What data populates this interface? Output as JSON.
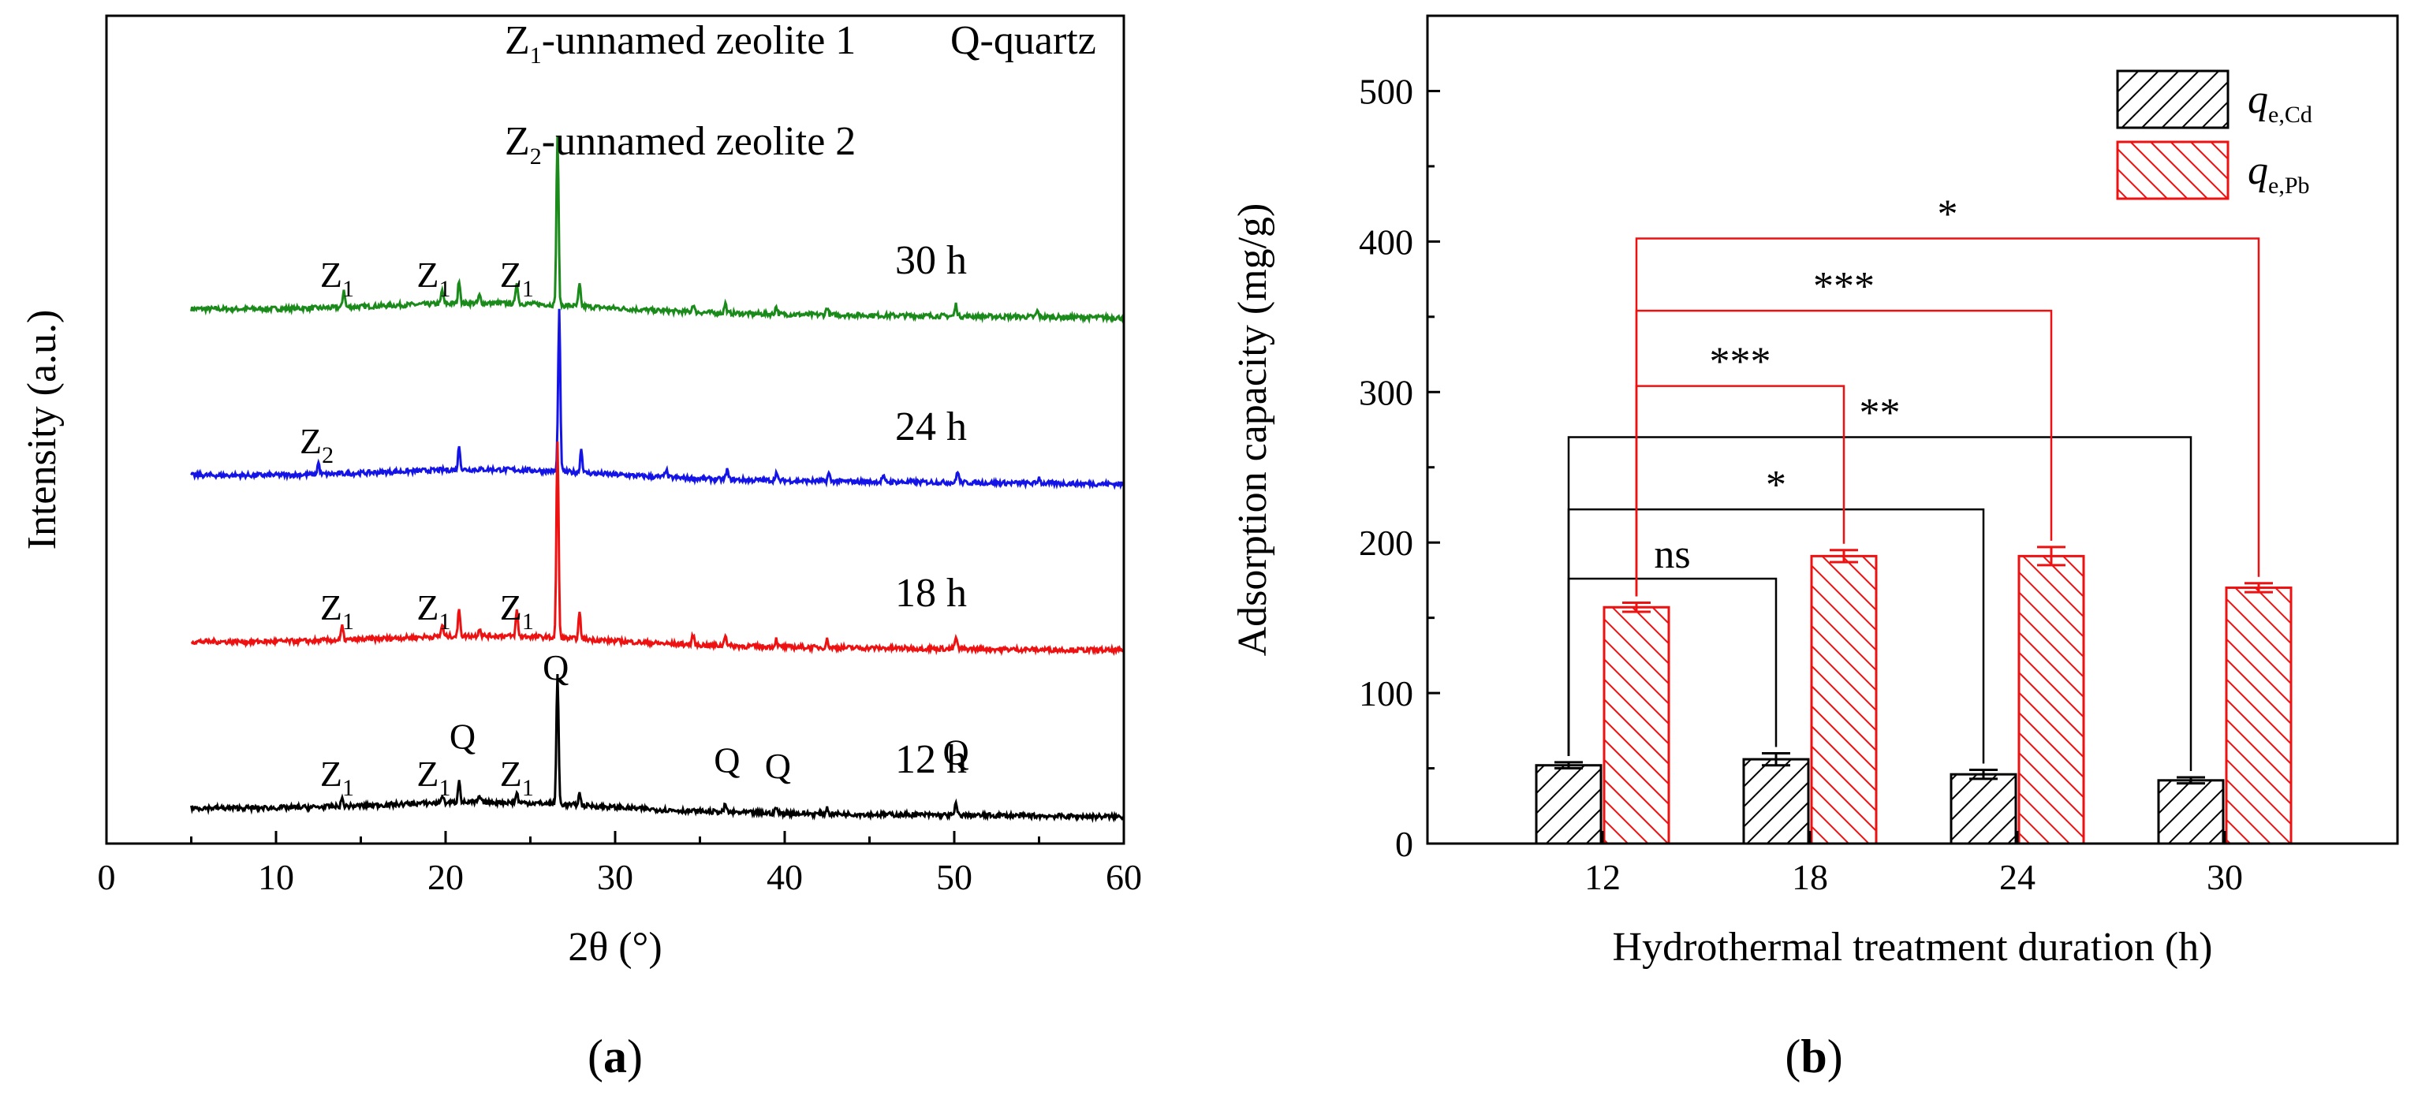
{
  "colors": {
    "trace_30h": "#1a8a1a",
    "trace_24h": "#1414e6",
    "trace_18h": "#ee1111",
    "trace_12h": "#000000",
    "cd_bar": "#000000",
    "pb_bar": "#ee1111"
  },
  "chart_data": [
    {
      "type": "line",
      "panel_label": {
        "open": "(",
        "letter": "a",
        "close": ")"
      },
      "xlabel": "2θ (°)",
      "ylabel": "Intensity (a.u.)",
      "xlim": [
        0,
        60
      ],
      "x_ticks": [
        "0",
        "10",
        "20",
        "30",
        "40",
        "50",
        "60"
      ],
      "y_ticks_labeled": false,
      "legend_text": {
        "z1_main": "Z",
        "z1_sub": "1",
        "z1_rest": "-unnamed zeolite 1",
        "z2_main": "Z",
        "z2_sub": "2",
        "z2_rest": "-unnamed zeolite 2",
        "q": "Q-quartz"
      },
      "series": [
        {
          "name": "30 h",
          "color": "#1a8a1a",
          "offset": 3,
          "peaks": [
            [
              14.0,
              0.45
            ],
            [
              19.8,
              0.35
            ],
            [
              20.8,
              0.6
            ],
            [
              22.0,
              0.2
            ],
            [
              24.2,
              0.55
            ],
            [
              26.6,
              4.3
            ],
            [
              27.9,
              0.55
            ],
            [
              34.6,
              0.2
            ],
            [
              36.5,
              0.25
            ],
            [
              39.5,
              0.2
            ],
            [
              42.5,
              0.2
            ],
            [
              50.1,
              0.3
            ],
            [
              54.9,
              0.15
            ]
          ],
          "labels": [
            {
              "text": "Z",
              "sub": "1",
              "x": 13.6
            },
            {
              "text": "Z",
              "sub": "1",
              "x": 19.3
            },
            {
              "text": "Z",
              "sub": "1",
              "x": 24.2
            }
          ]
        },
        {
          "name": "24 h",
          "color": "#1414e6",
          "offset": 2,
          "peaks": [
            [
              12.5,
              0.3
            ],
            [
              20.8,
              0.6
            ],
            [
              26.7,
              4.1
            ],
            [
              28.0,
              0.6
            ],
            [
              33.0,
              0.2
            ],
            [
              36.6,
              0.25
            ],
            [
              39.5,
              0.2
            ],
            [
              42.6,
              0.2
            ],
            [
              45.8,
              0.15
            ],
            [
              50.2,
              0.3
            ],
            [
              55.0,
              0.15
            ]
          ],
          "labels": [
            {
              "text": "Z",
              "sub": "2",
              "x": 12.4
            }
          ]
        },
        {
          "name": "18 h",
          "color": "#ee1111",
          "offset": 1,
          "peaks": [
            [
              13.9,
              0.35
            ],
            [
              19.8,
              0.3
            ],
            [
              20.8,
              0.7
            ],
            [
              22.0,
              0.2
            ],
            [
              24.2,
              0.65
            ],
            [
              26.6,
              5.0
            ],
            [
              27.9,
              0.65
            ],
            [
              34.6,
              0.25
            ],
            [
              36.5,
              0.3
            ],
            [
              39.5,
              0.2
            ],
            [
              42.5,
              0.2
            ],
            [
              50.1,
              0.3
            ]
          ],
          "labels": [
            {
              "text": "Z",
              "sub": "1",
              "x": 13.6
            },
            {
              "text": "Z",
              "sub": "1",
              "x": 19.3
            },
            {
              "text": "Z",
              "sub": "1",
              "x": 24.2
            }
          ]
        },
        {
          "name": "12 h",
          "color": "#000000",
          "offset": 0,
          "peaks": [
            [
              13.9,
              0.2
            ],
            [
              19.8,
              0.2
            ],
            [
              20.8,
              0.6
            ],
            [
              22.0,
              0.15
            ],
            [
              24.2,
              0.25
            ],
            [
              26.6,
              3.3
            ],
            [
              27.9,
              0.3
            ],
            [
              36.5,
              0.2
            ],
            [
              39.5,
              0.15
            ],
            [
              42.5,
              0.15
            ],
            [
              50.1,
              0.3
            ]
          ],
          "labels": [
            {
              "text": "Z",
              "sub": "1",
              "x": 13.6
            },
            {
              "text": "Z",
              "sub": "1",
              "x": 19.3
            },
            {
              "text": "Q",
              "sub": "",
              "x": 21.0,
              "above": 1.15
            },
            {
              "text": "Z",
              "sub": "1",
              "x": 24.2
            },
            {
              "text": "Q",
              "sub": "",
              "x": 26.5,
              "above": 2.9
            },
            {
              "text": "Q",
              "sub": "",
              "x": 36.6,
              "above": 0.55
            },
            {
              "text": "Q",
              "sub": "",
              "x": 39.6,
              "above": 0.4
            },
            {
              "text": "Q",
              "sub": "",
              "x": 50.1,
              "above": 0.75
            }
          ]
        }
      ]
    },
    {
      "type": "bar",
      "panel_label": {
        "open": "(",
        "letter": "b",
        "close": ")"
      },
      "xlabel": "Hydrothermal treatment duration (h)",
      "ylabel": "Adsorption capacity (mg/g)",
      "ylim": [
        0,
        550
      ],
      "y_ticks": [
        "0",
        "100",
        "200",
        "300",
        "400",
        "500"
      ],
      "categories": [
        "12",
        "18",
        "24",
        "30"
      ],
      "series": [
        {
          "name_main": "q",
          "name_sub": "e,Cd",
          "color": "#000000",
          "values": [
            52,
            56,
            46,
            42
          ],
          "errors": [
            2,
            4,
            3,
            2
          ]
        },
        {
          "name_main": "q",
          "name_sub": "e,Pb",
          "color": "#ee1111",
          "values": [
            157,
            191,
            191,
            170
          ],
          "errors": [
            3,
            4,
            6,
            3
          ]
        }
      ],
      "significance": [
        {
          "label": "ns",
          "series": 0,
          "from": 0,
          "to": 1,
          "level": 176,
          "color": "#000000"
        },
        {
          "label": "*",
          "series": 0,
          "from": 0,
          "to": 2,
          "level": 222,
          "color": "#000000"
        },
        {
          "label": "**",
          "series": 0,
          "from": 0,
          "to": 3,
          "level": 270,
          "color": "#000000"
        },
        {
          "label": "***",
          "series": 1,
          "from": 0,
          "to": 1,
          "level": 304,
          "color": "#ee1111"
        },
        {
          "label": "***",
          "series": 1,
          "from": 0,
          "to": 2,
          "level": 354,
          "color": "#ee1111"
        },
        {
          "label": "*",
          "series": 1,
          "from": 0,
          "to": 3,
          "level": 402,
          "color": "#ee1111"
        }
      ],
      "legend_position": "top-right"
    }
  ]
}
